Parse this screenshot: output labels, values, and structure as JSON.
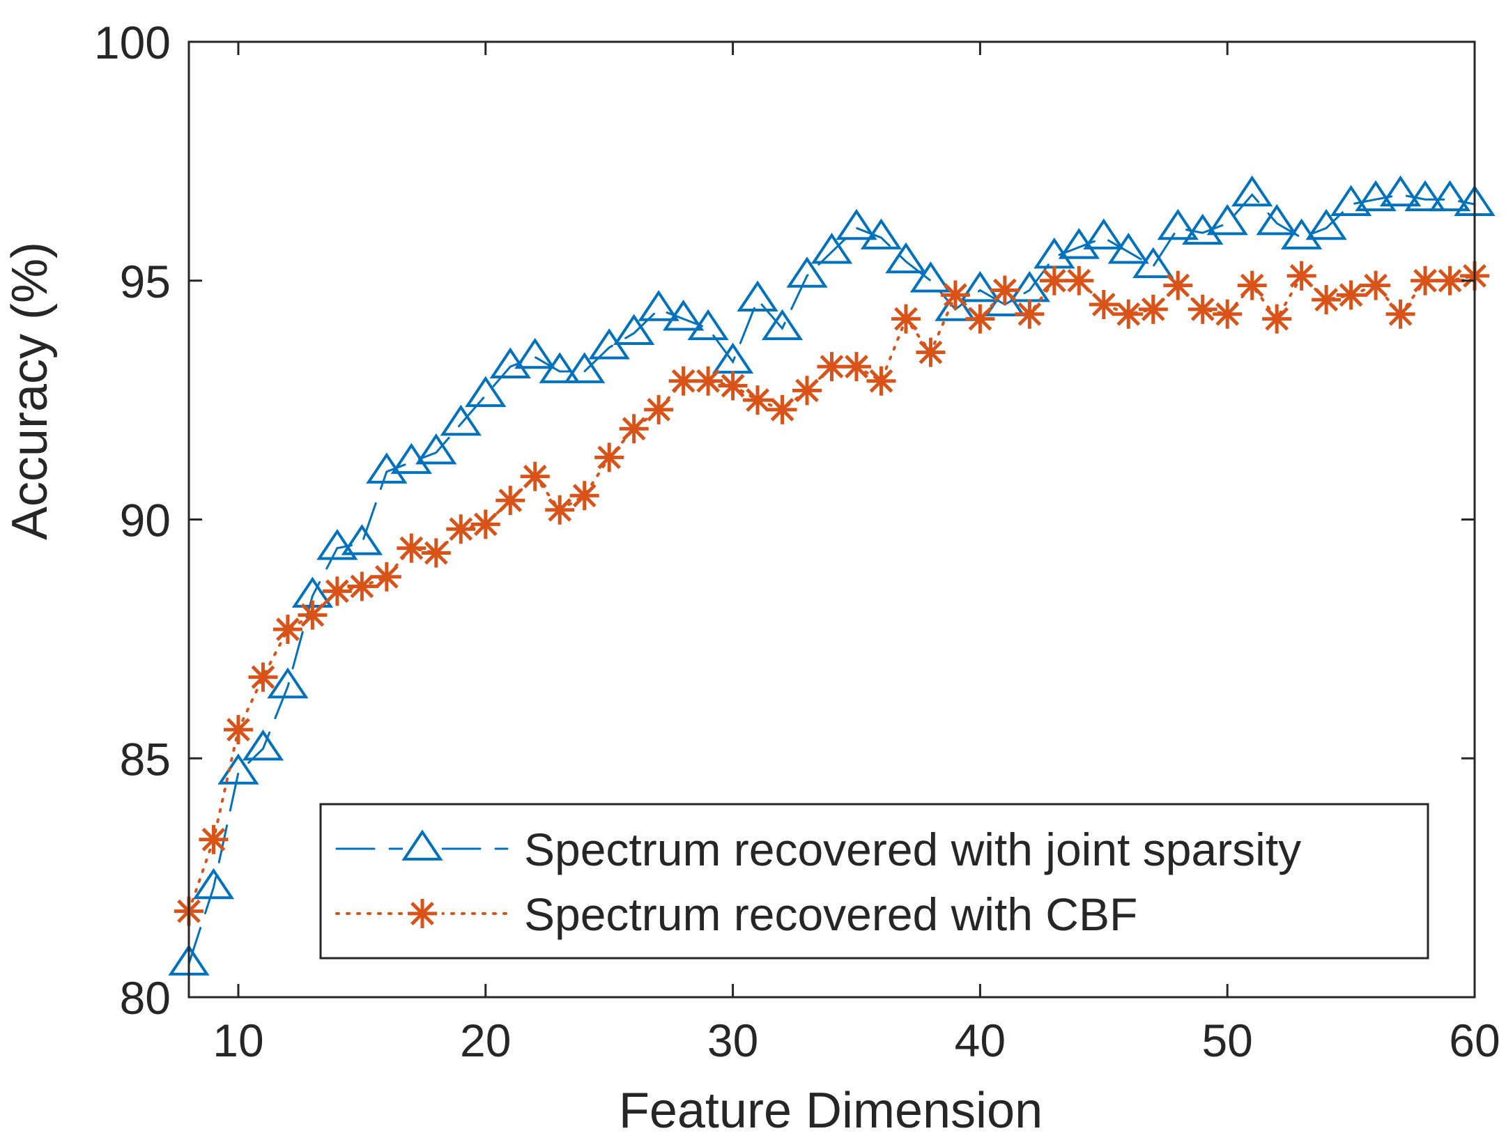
{
  "chart_data": {
    "type": "line",
    "title": "",
    "xlabel": "Feature Dimension",
    "ylabel": "Accuracy (%)",
    "xlim": [
      8,
      60
    ],
    "ylim": [
      80,
      100
    ],
    "xticks": [
      10,
      20,
      30,
      40,
      50,
      60
    ],
    "yticks": [
      80,
      85,
      90,
      95,
      100
    ],
    "grid": false,
    "legend_position": "bottom-right",
    "x": [
      8,
      9,
      10,
      11,
      12,
      13,
      14,
      15,
      16,
      17,
      18,
      19,
      20,
      21,
      22,
      23,
      24,
      25,
      26,
      27,
      28,
      29,
      30,
      31,
      32,
      33,
      34,
      35,
      36,
      37,
      38,
      39,
      40,
      41,
      42,
      43,
      44,
      45,
      46,
      47,
      48,
      49,
      50,
      51,
      52,
      53,
      54,
      55,
      56,
      57,
      58,
      59,
      60
    ],
    "series": [
      {
        "name": "Spectrum recovered with joint sparsity",
        "color": "#0072BD",
        "line_style": "dashed",
        "marker": "triangle",
        "values": [
          80.7,
          82.3,
          84.7,
          85.2,
          86.5,
          88.4,
          89.4,
          89.5,
          91.0,
          91.2,
          91.4,
          92.0,
          92.6,
          93.2,
          93.4,
          93.1,
          93.1,
          93.6,
          93.9,
          94.4,
          94.2,
          94.0,
          93.3,
          94.6,
          94.0,
          95.1,
          95.6,
          96.1,
          95.9,
          95.4,
          95.0,
          94.4,
          94.8,
          94.5,
          94.8,
          95.5,
          95.7,
          95.9,
          95.6,
          95.3,
          96.1,
          96.0,
          96.2,
          96.8,
          96.2,
          95.9,
          96.1,
          96.6,
          96.7,
          96.8,
          96.7,
          96.7,
          96.6
        ]
      },
      {
        "name": "Spectrum recovered with CBF",
        "color": "#D95319",
        "line_style": "dotted",
        "marker": "asterisk",
        "values": [
          81.8,
          83.3,
          85.6,
          86.7,
          87.7,
          88.0,
          88.5,
          88.6,
          88.8,
          89.4,
          89.3,
          89.8,
          89.9,
          90.4,
          90.9,
          90.2,
          90.5,
          91.3,
          91.9,
          92.3,
          92.9,
          92.9,
          92.8,
          92.5,
          92.3,
          92.7,
          93.2,
          93.2,
          92.9,
          94.2,
          93.5,
          94.7,
          94.2,
          94.8,
          94.3,
          95.0,
          95.0,
          94.5,
          94.3,
          94.4,
          94.9,
          94.4,
          94.3,
          94.9,
          94.2,
          95.1,
          94.6,
          94.7,
          94.9,
          94.3,
          95.0,
          95.0,
          95.1
        ]
      }
    ]
  }
}
